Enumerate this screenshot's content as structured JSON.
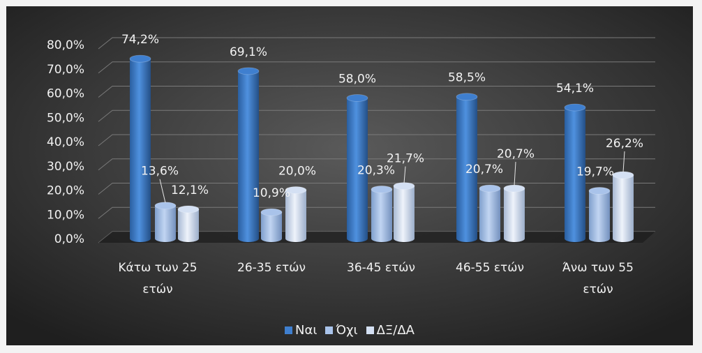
{
  "chart_data": {
    "type": "bar",
    "style": "3d-cylinder",
    "categories": [
      "Κάτω των 25 ετών",
      "26-35 ετών",
      "36-45 ετών",
      "46-55 ετών",
      "Άνω των 55 ετών"
    ],
    "category_lines": [
      [
        "Κάτω των 25",
        "ετών"
      ],
      [
        "26-35 ετών"
      ],
      [
        "36-45 ετών"
      ],
      [
        "46-55 ετών"
      ],
      [
        "Άνω των 55",
        "ετών"
      ]
    ],
    "series": [
      {
        "name": "Ναι",
        "values": [
          74.2,
          69.1,
          58.0,
          58.5,
          54.1
        ],
        "labels": [
          "74,2%",
          "69,1%",
          "58,0%",
          "58,5%",
          "54,1%"
        ],
        "color": "#3f7fcf"
      },
      {
        "name": "Όχι",
        "values": [
          13.6,
          10.9,
          20.3,
          20.7,
          19.7
        ],
        "labels": [
          "13,6%",
          "10,9%",
          "20,3%",
          "20,7%",
          "19,7%"
        ],
        "color": "#a9c3ea"
      },
      {
        "name": "ΔΞ/ΔΑ",
        "values": [
          12.1,
          20.0,
          21.7,
          20.7,
          26.2
        ],
        "labels": [
          "12,1%",
          "20,0%",
          "21,7%",
          "20,7%",
          "26,2%"
        ],
        "color": "#d4e0f3"
      }
    ],
    "ylim": [
      0,
      80
    ],
    "yticks": [
      0,
      10,
      20,
      30,
      40,
      50,
      60,
      70,
      80
    ],
    "ytick_labels": [
      "0,0%",
      "10,0%",
      "20,0%",
      "30,0%",
      "40,0%",
      "50,0%",
      "60,0%",
      "70,0%",
      "80,0%"
    ],
    "grid": true,
    "legend_position": "bottom",
    "colors": {
      "background_dark": "#202020",
      "background_light": "#575757",
      "text": "#f2f2f2",
      "gridline": "#7a7a7a"
    }
  },
  "legend": [
    {
      "label": "Ναι",
      "color": "#3f7fcf"
    },
    {
      "label": "Όχι",
      "color": "#a9c3ea"
    },
    {
      "label": "ΔΞ/ΔΑ",
      "color": "#d4e0f3"
    }
  ]
}
